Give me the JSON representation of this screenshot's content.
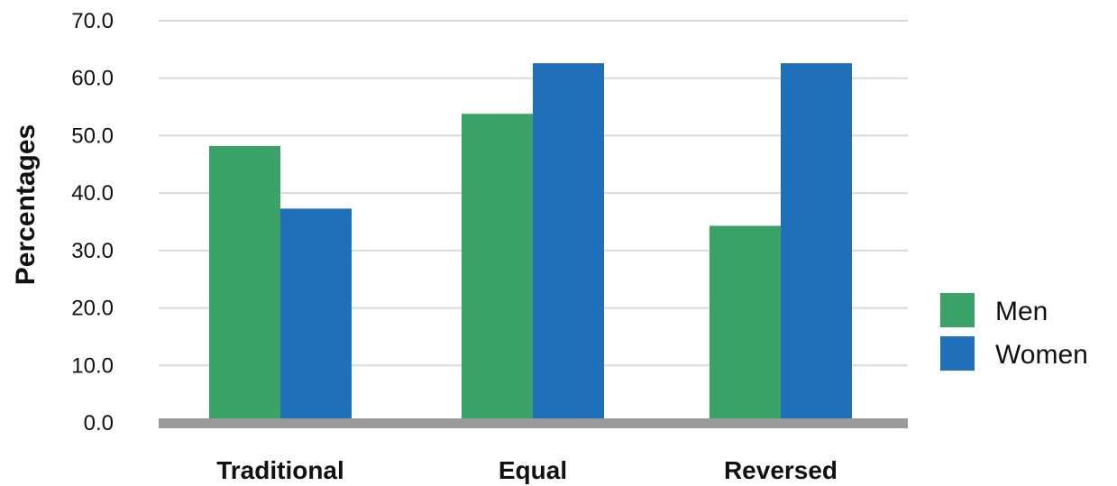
{
  "chart_data": {
    "type": "bar",
    "title": "",
    "xlabel": "",
    "ylabel": "Percentages",
    "ylim": [
      0,
      70
    ],
    "yticks": [
      "0.0",
      "10.0",
      "20.0",
      "30.0",
      "40.0",
      "50.0",
      "60.0",
      "70.0"
    ],
    "categories": [
      "Traditional",
      "Equal",
      "Reversed"
    ],
    "series": [
      {
        "name": "Men",
        "color": "#3aa266",
        "values": [
          48.2,
          53.8,
          34.3
        ]
      },
      {
        "name": "Women",
        "color": "#1f70b8",
        "values": [
          37.3,
          62.6,
          62.6
        ]
      }
    ],
    "grid": true,
    "legend": "right"
  }
}
